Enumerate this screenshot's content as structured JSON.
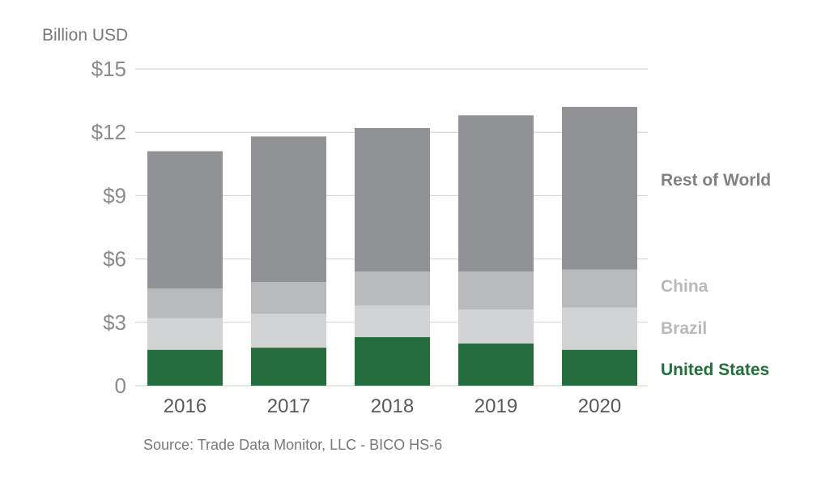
{
  "chart_data": {
    "type": "bar",
    "stacked": true,
    "ylabel": "Billion USD",
    "ylim": [
      0,
      15
    ],
    "yticks": [
      {
        "value": 0,
        "label": "0"
      },
      {
        "value": 3,
        "label": "$3"
      },
      {
        "value": 6,
        "label": "$6"
      },
      {
        "value": 9,
        "label": "$9"
      },
      {
        "value": 12,
        "label": "$12"
      },
      {
        "value": 15,
        "label": "$15"
      }
    ],
    "categories": [
      "2016",
      "2017",
      "2018",
      "2019",
      "2020"
    ],
    "series": [
      {
        "name": "United States",
        "color": "#236e3c",
        "values": [
          1.7,
          1.8,
          2.3,
          2.0,
          1.7
        ]
      },
      {
        "name": "Brazil",
        "color": "#d2d3d4",
        "values": [
          1.5,
          1.6,
          1.5,
          1.6,
          2.0
        ]
      },
      {
        "name": "China",
        "color": "#b8b9bb",
        "values": [
          1.4,
          1.5,
          1.6,
          1.8,
          1.8
        ]
      },
      {
        "name": "Rest of World",
        "color": "#919295",
        "values": [
          6.5,
          6.9,
          6.8,
          7.4,
          7.7
        ]
      }
    ],
    "legend_label_colors": {
      "United States": "#236e3c",
      "Brazil": "#b8b9bb",
      "China": "#b8b9bb",
      "Rest of World": "#808184"
    },
    "legend_position": "right",
    "grid": true
  },
  "source": "Source: Trade Data Monitor, LLC - BICO HS-6"
}
